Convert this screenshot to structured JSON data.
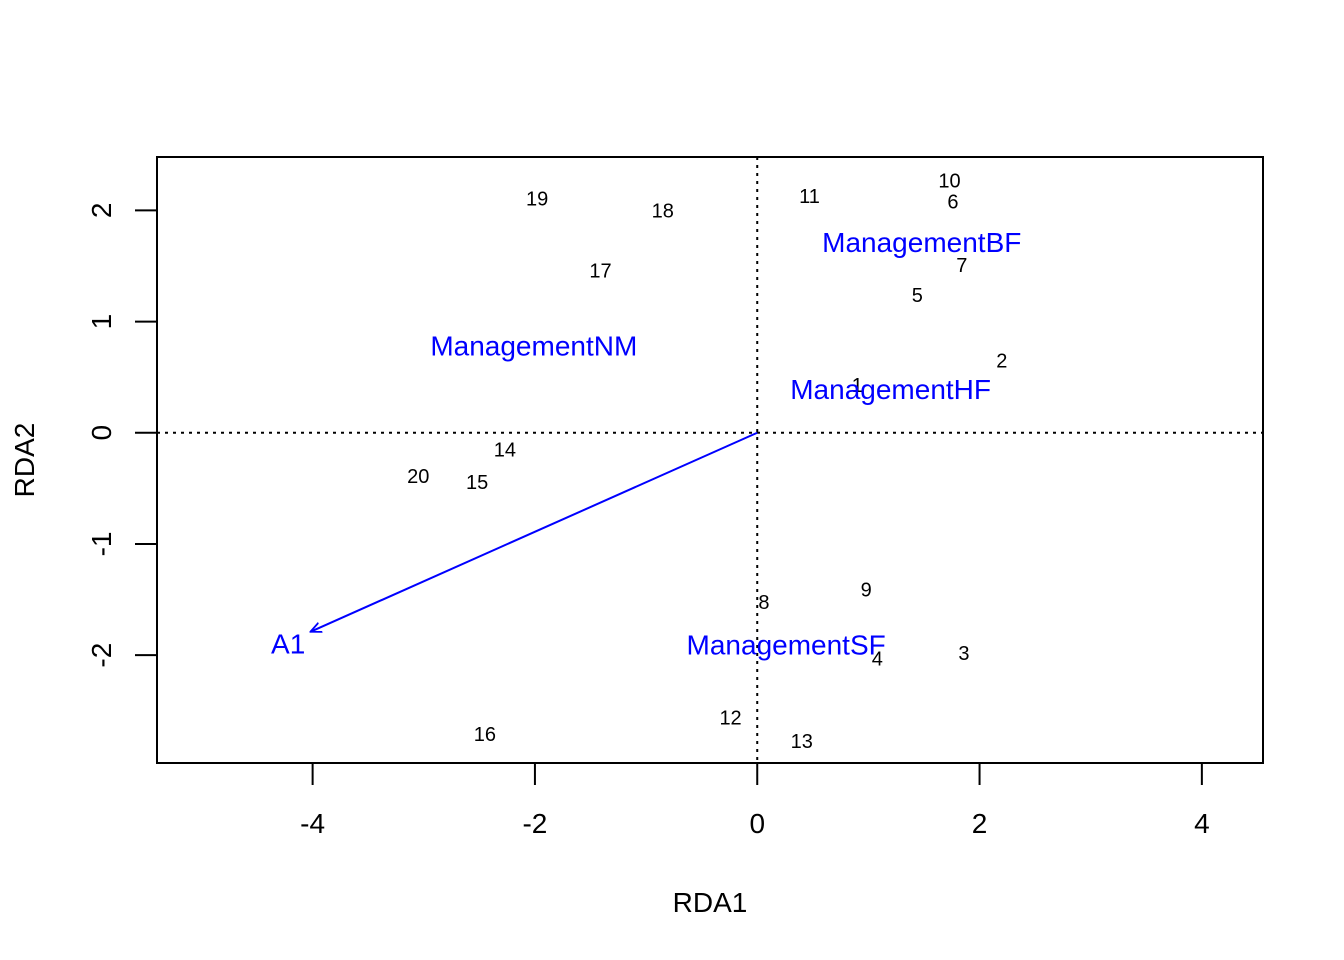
{
  "chart_data": {
    "type": "scatter",
    "xlabel": "RDA1",
    "ylabel": "RDA2",
    "xlim": [
      -5.4,
      4.55
    ],
    "ylim": [
      -2.97,
      2.48
    ],
    "x_ticks": [
      -4,
      -2,
      0,
      2,
      4
    ],
    "x_tick_labels": [
      "-4",
      "-2",
      "0",
      "2",
      "4"
    ],
    "y_ticks": [
      -2,
      -1,
      0,
      1,
      2
    ],
    "y_tick_labels": [
      "-2",
      "-1",
      "0",
      "1",
      "2"
    ],
    "grid": false,
    "origin_lines": "dotted",
    "sites": [
      {
        "label": "1",
        "x": 0.9,
        "y": 0.42
      },
      {
        "label": "2",
        "x": 2.2,
        "y": 0.64
      },
      {
        "label": "3",
        "x": 1.86,
        "y": -1.99
      },
      {
        "label": "4",
        "x": 1.08,
        "y": -2.04
      },
      {
        "label": "5",
        "x": 1.44,
        "y": 1.23
      },
      {
        "label": "6",
        "x": 1.76,
        "y": 2.07
      },
      {
        "label": "7",
        "x": 1.84,
        "y": 1.5
      },
      {
        "label": "8",
        "x": 0.06,
        "y": -1.53
      },
      {
        "label": "9",
        "x": 0.98,
        "y": -1.42
      },
      {
        "label": "10",
        "x": 1.73,
        "y": 2.26
      },
      {
        "label": "11",
        "x": 0.47,
        "y": 2.12
      },
      {
        "label": "12",
        "x": -0.24,
        "y": -2.57
      },
      {
        "label": "13",
        "x": 0.4,
        "y": -2.78
      },
      {
        "label": "14",
        "x": -2.27,
        "y": -0.16
      },
      {
        "label": "15",
        "x": -2.52,
        "y": -0.45
      },
      {
        "label": "16",
        "x": -2.45,
        "y": -2.72
      },
      {
        "label": "17",
        "x": -1.41,
        "y": 1.45
      },
      {
        "label": "18",
        "x": -0.85,
        "y": 1.99
      },
      {
        "label": "19",
        "x": -1.98,
        "y": 2.1
      },
      {
        "label": "20",
        "x": -3.05,
        "y": -0.4
      }
    ],
    "centroids": [
      {
        "label": "ManagementBF",
        "x": 1.48,
        "y": 1.71
      },
      {
        "label": "ManagementNM",
        "x": -2.01,
        "y": 0.78
      },
      {
        "label": "ManagementHF",
        "x": 1.2,
        "y": 0.39
      },
      {
        "label": "ManagementSF",
        "x": 0.26,
        "y": -1.91
      }
    ],
    "arrows": [
      {
        "label": "A1",
        "x": -4.02,
        "y": -1.79,
        "label_x": -4.22,
        "label_y": -1.9
      }
    ],
    "colors": {
      "sites": "#000000",
      "environment": "#0000ff",
      "axes": "#000000"
    }
  }
}
